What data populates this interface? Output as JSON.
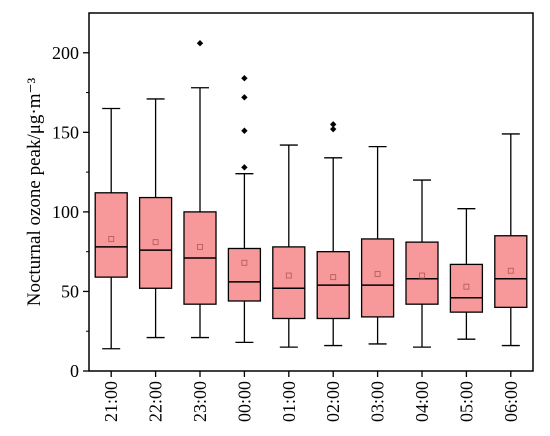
{
  "chart_data": {
    "type": "box",
    "title": "",
    "xlabel": "",
    "ylabel": "Nocturnal ozone peak/μg·m⁻³",
    "ylim": [
      0,
      225
    ],
    "yticks": [
      0,
      50,
      100,
      150,
      200
    ],
    "grid": false,
    "colors": {
      "box_fill": "#f7999a",
      "box_stroke": "#000000",
      "mean_marker": "#b85c5c",
      "outlier": "#000000"
    },
    "categories": [
      "21:00",
      "22:00",
      "23:00",
      "00:00",
      "01:00",
      "02:00",
      "03:00",
      "04:00",
      "05:00",
      "06:00"
    ],
    "boxes": [
      {
        "label": "21:00",
        "whisker_low": 14,
        "q1": 59,
        "median": 78,
        "q3": 112,
        "whisker_high": 165,
        "mean": 83,
        "outliers": []
      },
      {
        "label": "22:00",
        "whisker_low": 21,
        "q1": 52,
        "median": 76,
        "q3": 109,
        "whisker_high": 171,
        "mean": 81,
        "outliers": []
      },
      {
        "label": "23:00",
        "whisker_low": 21,
        "q1": 42,
        "median": 71,
        "q3": 100,
        "whisker_high": 178,
        "mean": 78,
        "outliers": [
          206
        ]
      },
      {
        "label": "00:00",
        "whisker_low": 18,
        "q1": 44,
        "median": 56,
        "q3": 77,
        "whisker_high": 124,
        "mean": 68,
        "outliers": [
          128,
          151,
          172,
          184
        ]
      },
      {
        "label": "01:00",
        "whisker_low": 15,
        "q1": 33,
        "median": 52,
        "q3": 78,
        "whisker_high": 142,
        "mean": 60,
        "outliers": []
      },
      {
        "label": "02:00",
        "whisker_low": 16,
        "q1": 33,
        "median": 54,
        "q3": 75,
        "whisker_high": 134,
        "mean": 59,
        "outliers": [
          152,
          155
        ]
      },
      {
        "label": "03:00",
        "whisker_low": 17,
        "q1": 34,
        "median": 54,
        "q3": 83,
        "whisker_high": 141,
        "mean": 61,
        "outliers": []
      },
      {
        "label": "04:00",
        "whisker_low": 15,
        "q1": 42,
        "median": 58,
        "q3": 81,
        "whisker_high": 120,
        "mean": 60,
        "outliers": []
      },
      {
        "label": "05:00",
        "whisker_low": 20,
        "q1": 37,
        "median": 46,
        "q3": 67,
        "whisker_high": 102,
        "mean": 53,
        "outliers": []
      },
      {
        "label": "06:00",
        "whisker_low": 16,
        "q1": 40,
        "median": 58,
        "q3": 85,
        "whisker_high": 149,
        "mean": 63,
        "outliers": []
      }
    ]
  }
}
